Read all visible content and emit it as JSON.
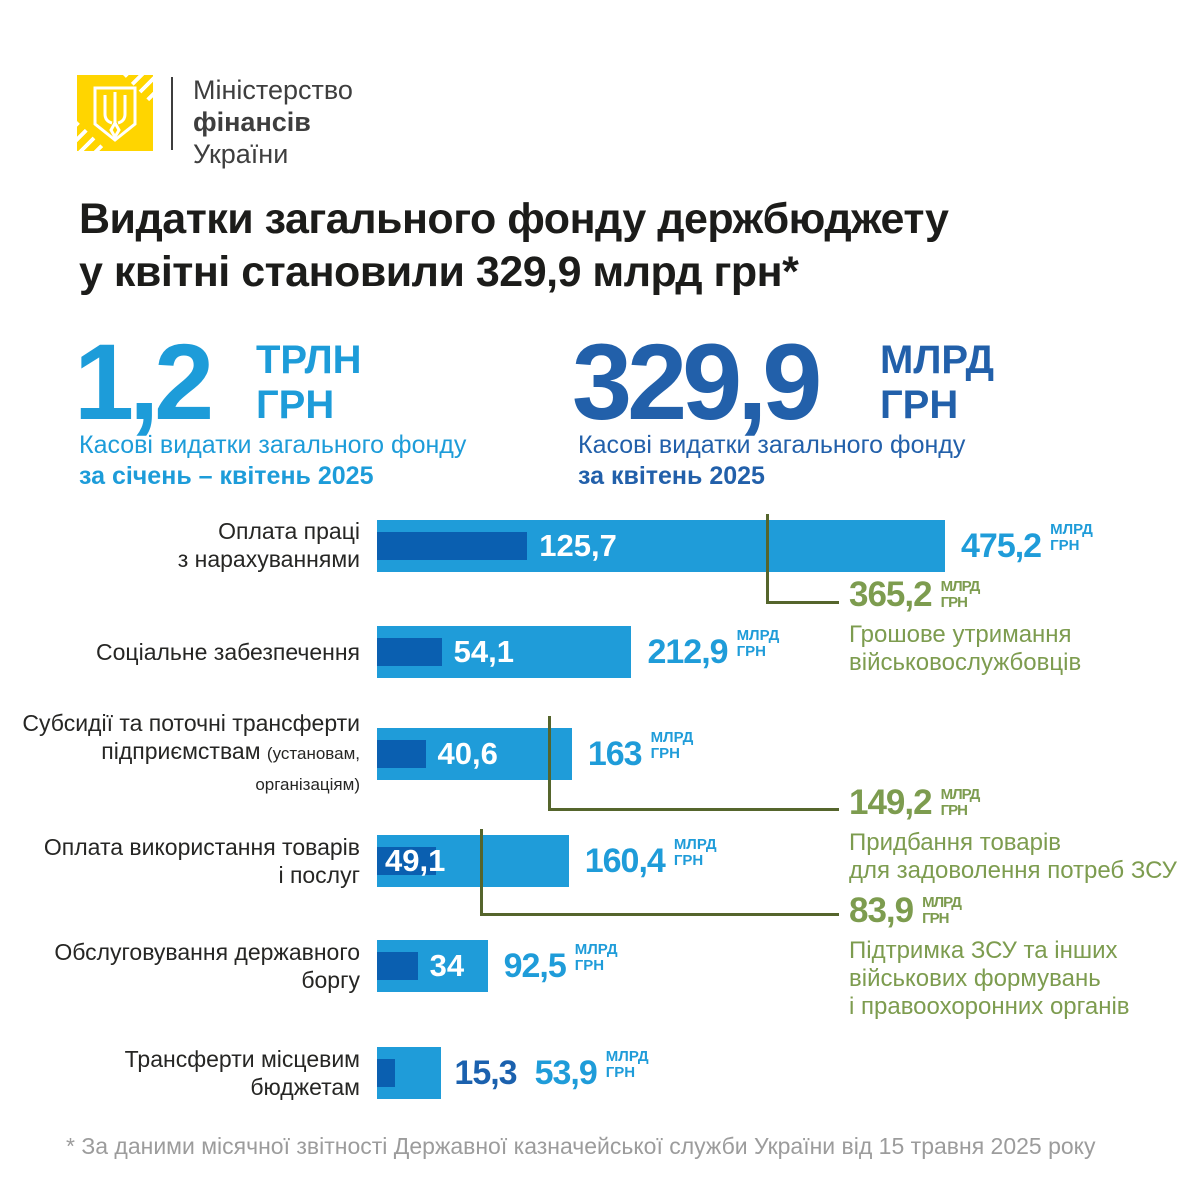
{
  "logo": {
    "org1": "Міністерство",
    "org2": "фінансів",
    "org3": "України"
  },
  "title": {
    "line1": "Видатки загального фонду держбюджету",
    "line2": "у квітні становили 329,9 млрд грн*"
  },
  "stats": {
    "left": {
      "value": "1,2",
      "unit1": "ТРЛН",
      "unit2": "ГРН",
      "cap1": "Касові видатки загального фонду",
      "cap2": "за січень – квітень 2025"
    },
    "right": {
      "value": "329,9",
      "unit1": "МЛРД",
      "unit2": "ГРН",
      "cap1": "Касові видатки загального фонду",
      "cap2": "за квітень 2025"
    }
  },
  "chart_data": {
    "type": "bar",
    "unit": "млрд грн",
    "unit_line1": "МЛРД",
    "unit_line2": "ГРН",
    "xlim": [
      0,
      475.2
    ],
    "categories": [
      "Оплата праці з нарахуваннями",
      "Соціальне забезпечення",
      "Субсидії та поточні трансферти підприємствам (установам, організаціям)",
      "Оплата використання товарів і послуг",
      "Обслуговування державного боргу",
      "Трансферти місцевим бюджетам"
    ],
    "series": [
      {
        "name": "за квітень 2025",
        "values": [
          125.7,
          54.1,
          40.6,
          49.1,
          34,
          15.3
        ]
      },
      {
        "name": "за січень – квітень 2025",
        "values": [
          475.2,
          212.9,
          163,
          160.4,
          92.5,
          53.9
        ]
      }
    ],
    "rows": [
      {
        "l1": "Оплата праці",
        "l2": "з нарахуваннями",
        "l2small": "",
        "inner_value": 125.7,
        "inner_label": "125,7",
        "outer_value": 475.2,
        "outer_label": "475,2"
      },
      {
        "l1": "Соціальне забезпечення",
        "l2": "",
        "l2small": "",
        "inner_value": 54.1,
        "inner_label": "54,1",
        "outer_value": 212.9,
        "outer_label": "212,9"
      },
      {
        "l1": "Субсидії та поточні трансферти",
        "l2": "підприємствам",
        "l2small": "(установам, організаціям)",
        "inner_value": 40.6,
        "inner_label": "40,6",
        "outer_value": 163,
        "outer_label": "163"
      },
      {
        "l1": "Оплата використання товарів",
        "l2": "і послуг",
        "l2small": "",
        "inner_value": 49.1,
        "inner_label": "49,1",
        "outer_value": 160.4,
        "outer_label": "160,4"
      },
      {
        "l1": "Обслуговування державного",
        "l2": "боргу",
        "l2small": "",
        "inner_value": 34,
        "inner_label": "34",
        "outer_value": 92.5,
        "outer_label": "92,5"
      },
      {
        "l1": "Трансферти місцевим",
        "l2": "бюджетам",
        "l2small": "",
        "inner_value": 15.3,
        "inner_label": "15,3",
        "outer_value": 53.9,
        "outer_label": "53,9"
      }
    ],
    "annotations": [
      {
        "value": "365,2",
        "numeric": 365.2,
        "desc_lines": [
          "Грошове утримання",
          "військовослужбовців"
        ]
      },
      {
        "value": "149,2",
        "numeric": 149.2,
        "desc_lines": [
          "Придбання товарів",
          "для задоволення потреб ЗСУ"
        ]
      },
      {
        "value": "83,9",
        "numeric": 83.9,
        "desc_lines": [
          "Підтримка ЗСУ та інших",
          "військових формувань",
          "і правоохоронних органів"
        ]
      }
    ]
  },
  "footer": {
    "note": "* За даними місячної звітності Державної казначейської служби України від 15 травня 2025 року"
  },
  "colors": {
    "light_blue": "#1f9cd9",
    "inner_bar_blue": "#0a5fb0",
    "dark_blue": "#2260aa",
    "green": "#7d9c4f",
    "olive_line": "#55652c",
    "logo_yellow": "#ffd500",
    "text_dark": "#1c1c1a",
    "footer_gray": "#9c9c9c"
  }
}
